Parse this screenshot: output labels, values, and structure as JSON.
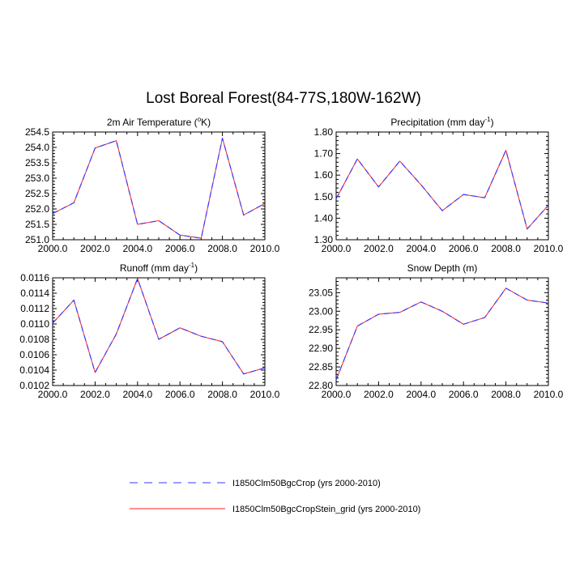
{
  "page_title": "Lost Boreal Forest(84-77S,180W-162W)",
  "colors": {
    "series_1": "#3a3aff",
    "series_2": "#ff2020",
    "axis": "#000000",
    "background": "#ffffff"
  },
  "legend": {
    "placement": "bottom-center",
    "entries": [
      {
        "label": "I1850Clm50BgcCrop (yrs 2000-2010)",
        "color": "#3a3aff",
        "style": "dashed"
      },
      {
        "label": "I1850Clm50BgcCropStein_grid (yrs 2000-2010)",
        "color": "#ff2020",
        "style": "solid"
      }
    ]
  },
  "chart_data": [
    {
      "type": "line",
      "title": "2m Air Temperature (",
      "title_sup": "o",
      "title_after": "K)",
      "xlabel": "",
      "ylabel": "",
      "x": [
        2000,
        2001,
        2002,
        2003,
        2004,
        2005,
        2006,
        2007,
        2008,
        2009,
        2010
      ],
      "xlim": [
        2000,
        2010
      ],
      "ylim": [
        251.0,
        254.5
      ],
      "x_ticks": [
        "2000.0",
        "2002.0",
        "2004.0",
        "2006.0",
        "2008.0",
        "2010.0"
      ],
      "y_ticks": [
        "251.0",
        "251.5",
        "252.0",
        "252.5",
        "253.0",
        "253.5",
        "254.0",
        "254.5"
      ],
      "grid": false,
      "series": [
        {
          "values": [
            251.85,
            252.2,
            253.98,
            254.22,
            251.5,
            251.62,
            251.15,
            251.05,
            254.3,
            251.8,
            252.18
          ]
        },
        {
          "values": [
            251.85,
            252.2,
            253.98,
            254.22,
            251.5,
            251.62,
            251.15,
            251.05,
            254.3,
            251.8,
            252.18
          ]
        }
      ]
    },
    {
      "type": "line",
      "title": "Precipitation (mm day",
      "title_sup": "-1",
      "title_after": ")",
      "xlabel": "",
      "ylabel": "",
      "x": [
        2000,
        2001,
        2002,
        2003,
        2004,
        2005,
        2006,
        2007,
        2008,
        2009,
        2010
      ],
      "xlim": [
        2000,
        2010
      ],
      "ylim": [
        1.3,
        1.8
      ],
      "x_ticks": [
        "2000.0",
        "2002.0",
        "2004.0",
        "2006.0",
        "2008.0",
        "2010.0"
      ],
      "y_ticks": [
        "1.30",
        "1.40",
        "1.50",
        "1.60",
        "1.70",
        "1.80"
      ],
      "grid": false,
      "series": [
        {
          "values": [
            1.49,
            1.675,
            1.545,
            1.665,
            1.555,
            1.435,
            1.51,
            1.495,
            1.715,
            1.35,
            1.46
          ]
        },
        {
          "values": [
            1.49,
            1.675,
            1.545,
            1.665,
            1.555,
            1.435,
            1.51,
            1.495,
            1.715,
            1.35,
            1.46
          ]
        }
      ]
    },
    {
      "type": "line",
      "title": "Runoff (mm day",
      "title_sup": "-1",
      "title_after": ")",
      "xlabel": "",
      "ylabel": "",
      "x": [
        2000,
        2001,
        2002,
        2003,
        2004,
        2005,
        2006,
        2007,
        2008,
        2009,
        2010
      ],
      "xlim": [
        2000,
        2010
      ],
      "ylim": [
        0.0102,
        0.0116
      ],
      "x_ticks": [
        "2000.0",
        "2002.0",
        "2004.0",
        "2006.0",
        "2008.0",
        "2010.0"
      ],
      "y_ticks": [
        "0.0102",
        "0.0104",
        "0.0106",
        "0.0108",
        "0.0110",
        "0.0112",
        "0.0114",
        "0.0116"
      ],
      "grid": false,
      "series": [
        {
          "values": [
            0.01101,
            0.01131,
            0.01037,
            0.01087,
            0.01159,
            0.0108,
            0.01095,
            0.01084,
            0.01077,
            0.01035,
            0.01043
          ]
        },
        {
          "values": [
            0.01101,
            0.01131,
            0.01037,
            0.01087,
            0.01159,
            0.0108,
            0.01095,
            0.01084,
            0.01077,
            0.01035,
            0.01043
          ]
        }
      ]
    },
    {
      "type": "line",
      "title": "Snow Depth (m)",
      "title_sup": "",
      "title_after": "",
      "xlabel": "",
      "ylabel": "",
      "x": [
        2000,
        2001,
        2002,
        2003,
        2004,
        2005,
        2006,
        2007,
        2008,
        2009,
        2010
      ],
      "xlim": [
        2000,
        2010
      ],
      "ylim": [
        22.8,
        23.09
      ],
      "x_ticks": [
        "2000.0",
        "2002.0",
        "2004.0",
        "2006.0",
        "2008.0",
        "2010.0"
      ],
      "y_ticks": [
        "22.80",
        "22.85",
        "22.90",
        "22.95",
        "23.00",
        "23.05"
      ],
      "grid": false,
      "series": [
        {
          "values": [
            22.815,
            22.96,
            22.992,
            22.997,
            23.025,
            23.0,
            22.965,
            22.983,
            23.062,
            23.03,
            23.022
          ]
        },
        {
          "values": [
            22.815,
            22.96,
            22.992,
            22.997,
            23.025,
            23.0,
            22.965,
            22.983,
            23.062,
            23.03,
            23.022
          ]
        }
      ]
    }
  ]
}
